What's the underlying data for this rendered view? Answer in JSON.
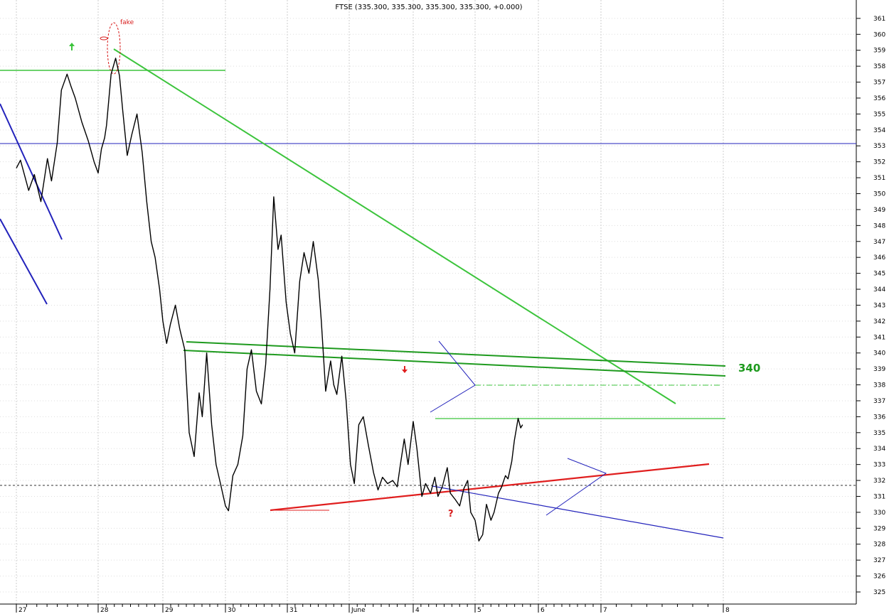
{
  "chart_data": {
    "type": "line",
    "title": "FTSE (335.300, 335.300, 335.300, 335.300, +0.000)",
    "xlabel": "",
    "ylabel": "",
    "x_ticks": [
      "27",
      "28",
      "29",
      "30",
      "31",
      "June",
      "4",
      "5",
      "6",
      "7",
      "8"
    ],
    "ylim": [
      324.2,
      362
    ],
    "y_ticks": [
      325,
      326,
      327,
      328,
      329,
      330,
      331,
      332,
      333,
      334,
      335,
      336,
      337,
      338,
      339,
      340,
      341,
      342,
      343,
      344,
      345,
      346,
      347,
      348,
      349,
      350,
      351,
      352,
      353,
      354,
      355,
      356,
      357,
      358,
      359,
      360,
      361
    ],
    "grid": true,
    "y_axis_position": "right",
    "series": [
      {
        "color": "#000000",
        "x": [
          0,
          0.05,
          0.15,
          0.22,
          0.3,
          0.38,
          0.43,
          0.5,
          0.55,
          0.62,
          0.67,
          0.72,
          0.8,
          0.88,
          0.95,
          1.0,
          1.05,
          1.1,
          1.13,
          1.2,
          1.27,
          1.33,
          1.38,
          1.45,
          1.52,
          1.6,
          1.68,
          1.75,
          1.82,
          1.88,
          1.95,
          2.0,
          2.06,
          2.12,
          2.2,
          2.27,
          2.35,
          2.42,
          2.5,
          2.58,
          2.63,
          2.7,
          2.78,
          2.85,
          2.92,
          3.0,
          3.05,
          3.12,
          3.2,
          3.28,
          3.35,
          3.42,
          3.5,
          3.58,
          3.65,
          3.72,
          3.78,
          3.85,
          3.9,
          3.98,
          4.05,
          4.12,
          4.2,
          4.27,
          4.35,
          4.42,
          4.5,
          4.55,
          4.62,
          4.7,
          4.75,
          4.8,
          4.88,
          4.95,
          5.02,
          5.08,
          5.15,
          5.22,
          5.3,
          5.38,
          5.45,
          5.52,
          5.6,
          5.68,
          5.75,
          5.8,
          5.86,
          5.92,
          6.0,
          6.06,
          6.14,
          6.2,
          6.28,
          6.35,
          6.4,
          6.47,
          6.55,
          6.6,
          6.68,
          6.75,
          6.82,
          6.88,
          6.93,
          7.0,
          7.06,
          7.12,
          7.18,
          7.25,
          7.3,
          7.37,
          7.42,
          7.48,
          7.52,
          7.58,
          7.62,
          7.65,
          7.68,
          7.72,
          7.75
        ],
        "values": [
          351.6,
          352.1,
          350.2,
          351.2,
          349.5,
          352.2,
          350.8,
          353.2,
          356.5,
          357.5,
          356.7,
          356.0,
          354.5,
          353.3,
          352.0,
          351.3,
          352.8,
          353.5,
          354.3,
          357.5,
          358.5,
          357.4,
          355.2,
          352.4,
          353.7,
          355.0,
          352.6,
          349.5,
          347.0,
          346.0,
          344.0,
          342.0,
          340.6,
          341.8,
          343.0,
          341.5,
          340.2,
          335.0,
          333.5,
          337.5,
          336.0,
          340.0,
          335.5,
          333.0,
          331.8,
          330.4,
          330.1,
          332.3,
          333.0,
          334.8,
          339.0,
          340.2,
          337.6,
          336.8,
          339.3,
          344.0,
          349.8,
          346.5,
          347.4,
          343.2,
          341.2,
          340.0,
          344.5,
          346.3,
          345.0,
          347.0,
          344.6,
          342.0,
          337.6,
          339.5,
          338.0,
          337.4,
          339.8,
          337.0,
          333.0,
          331.8,
          335.5,
          336.0,
          334.2,
          332.5,
          331.4,
          332.2,
          331.8,
          332.0,
          331.6,
          333.0,
          334.6,
          333.0,
          335.7,
          334.0,
          331.0,
          331.8,
          331.2,
          332.2,
          331.0,
          331.6,
          332.8,
          331.2,
          330.8,
          330.4,
          331.5,
          332.0,
          330.0,
          329.5,
          328.2,
          328.6,
          330.5,
          329.5,
          330.0,
          331.2,
          331.6,
          332.3,
          332.1,
          333.2,
          334.5,
          335.2,
          335.9,
          335.3,
          335.5
        ]
      }
    ],
    "annotations": {
      "fake_label": "fake",
      "level_label": "340",
      "question_mark": "?"
    }
  }
}
